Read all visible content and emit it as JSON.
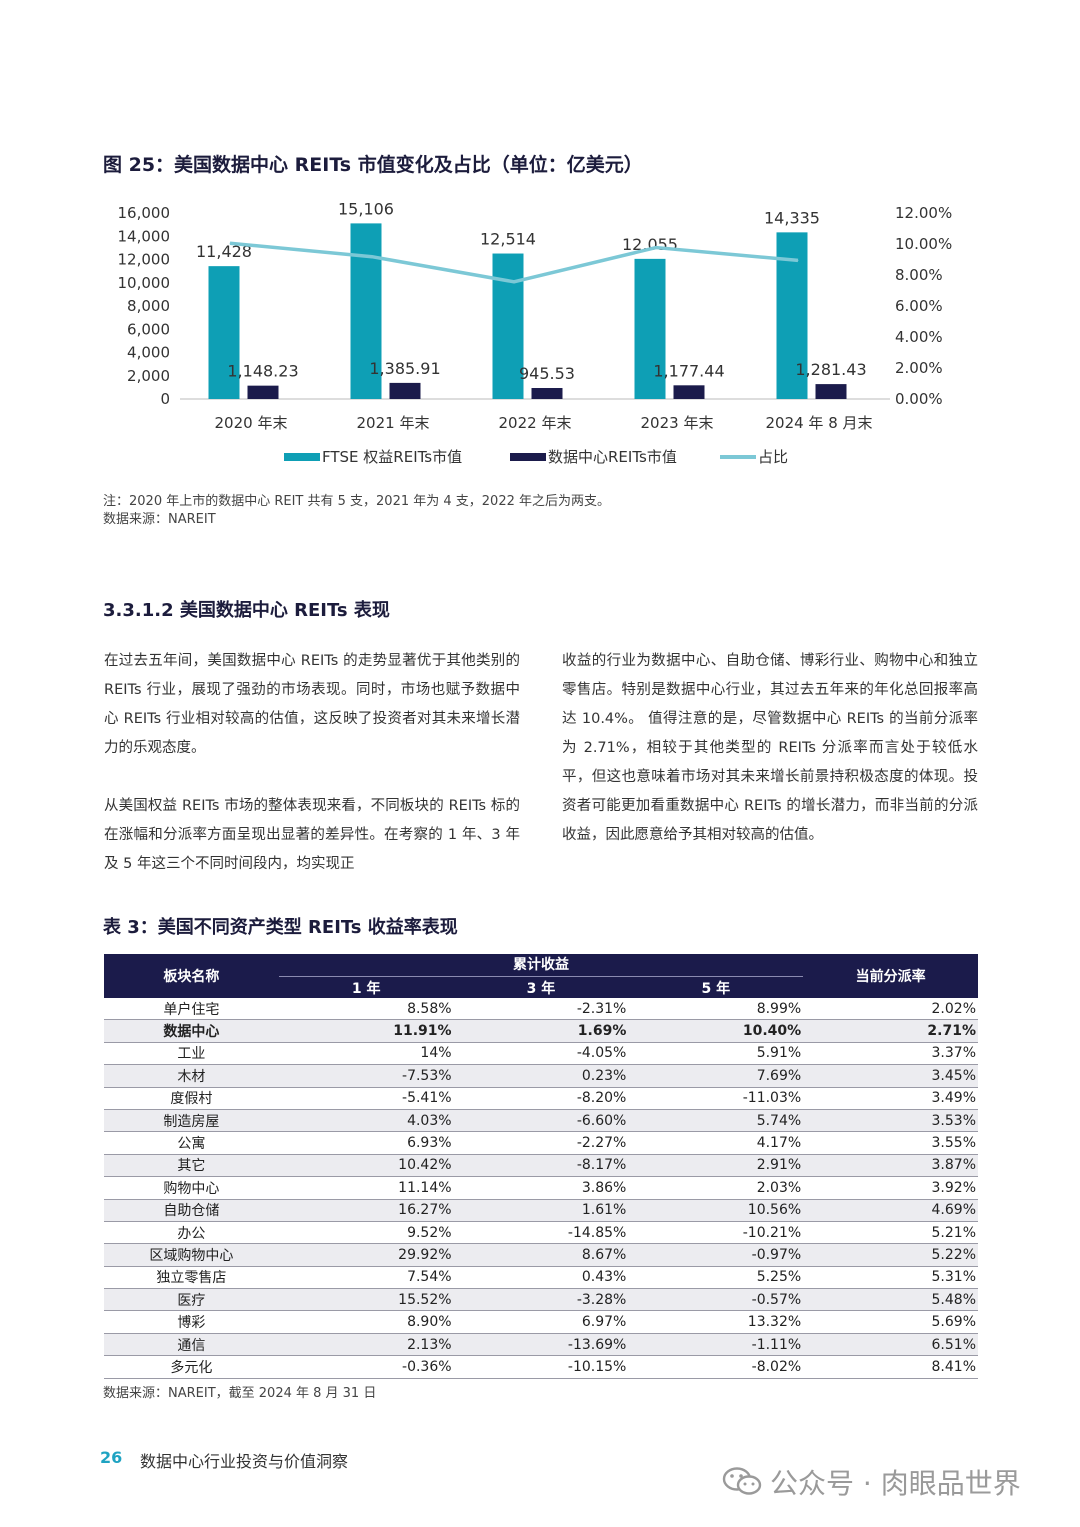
{
  "figure": {
    "title": "图 25：美国数据中心 REITs 市值变化及占比（单位：亿美元）",
    "note": "注：2020 年上市的数据中心 REIT 共有 5 支，2021 年为 4 支，2022 年之后为两支。",
    "source": "数据来源：NAREIT"
  },
  "chart_data": {
    "type": "bar",
    "categories": [
      "2020 年末",
      "2021 年末",
      "2022 年末",
      "2023 年末",
      "2024 年 8 月末"
    ],
    "series": [
      {
        "name": "FTSE 权益REITs市值",
        "type": "bar",
        "values": [
          11428,
          15106,
          12514,
          12055,
          14335
        ],
        "labels": [
          "11,428",
          "15,106",
          "12,514",
          "12,055",
          "14,335"
        ],
        "color": "#0e9fb5"
      },
      {
        "name": "数据中心REITs市值",
        "type": "bar",
        "values": [
          1148.23,
          1385.91,
          945.53,
          1177.44,
          1281.43
        ],
        "labels": [
          "1,148.23",
          "1,385.91",
          "945.53",
          "1,177.44",
          "1,281.43"
        ],
        "color": "#1b1b4b"
      },
      {
        "name": "占比",
        "type": "line",
        "axis": "right",
        "values": [
          0.1005,
          0.0918,
          0.0756,
          0.0977,
          0.0894
        ],
        "color": "#7cc8d6"
      }
    ],
    "y_left": {
      "min": 0,
      "max": 16000,
      "ticks": [
        "16,000",
        "14,000",
        "12,000",
        "10,000",
        "8,000",
        "6,000",
        "4,000",
        "2,000",
        "0"
      ]
    },
    "y_right": {
      "min": 0,
      "max": 0.12,
      "ticks": [
        "12.00%",
        "10.00%",
        "8.00%",
        "6.00%",
        "4.00%",
        "2.00%",
        "0.00%"
      ]
    },
    "legend_position": "bottom",
    "grid": false
  },
  "section": {
    "title": "3.3.1.2 美国数据中心 REITs 表现",
    "left_paragraphs": [
      "在过去五年间，美国数据中心 REITs 的走势显著优于其他类别的 REITs 行业，展现了强劲的市场表现。同时，市场也赋予数据中心 REITs 行业相对较高的估值，这反映了投资者对其未来增长潜力的乐观态度。",
      "从美国权益 REITs 市场的整体表现来看，不同板块的 REITs 标的在涨幅和分派率方面呈现出显著的差异性。在考察的 1 年、3 年及 5 年这三个不同时间段内，均实现正"
    ],
    "right_paragraphs": [
      "收益的行业为数据中心、自助仓储、博彩行业、购物中心和独立零售店。特别是数据中心行业，其过去五年来的年化总回报率高达 10.4%。 值得注意的是，尽管数据中心 REITs 的当前分派率为 2.71%，相较于其他类型的 REITs 分派率而言处于较低水平，但这也意味着市场对其未来增长前景持积极态度的体现。投资者可能更加看重数据中心 REITs 的增长潜力，而非当前的分派收益，因此愿意给予其相对较高的估值。"
    ]
  },
  "table": {
    "title": "表 3：美国不同资产类型 REITs 收益率表现",
    "headers": {
      "name": "板块名称",
      "group": "累计收益",
      "y1": "1 年",
      "y3": "3 年",
      "y5": "5 年",
      "yield": "当前分派率"
    },
    "rows": [
      {
        "name": "单户住宅",
        "y1": "8.58%",
        "y3": "-2.31%",
        "y5": "8.99%",
        "yield": "2.02%"
      },
      {
        "name": "数据中心",
        "y1": "11.91%",
        "y3": "1.69%",
        "y5": "10.40%",
        "yield": "2.71%",
        "bold": true
      },
      {
        "name": "工业",
        "y1": "14%",
        "y3": "-4.05%",
        "y5": "5.91%",
        "yield": "3.37%"
      },
      {
        "name": "木材",
        "y1": "-7.53%",
        "y3": "0.23%",
        "y5": "7.69%",
        "yield": "3.45%"
      },
      {
        "name": "度假村",
        "y1": "-5.41%",
        "y3": "-8.20%",
        "y5": "-11.03%",
        "yield": "3.49%"
      },
      {
        "name": "制造房屋",
        "y1": "4.03%",
        "y3": "-6.60%",
        "y5": "5.74%",
        "yield": "3.53%"
      },
      {
        "name": "公寓",
        "y1": "6.93%",
        "y3": "-2.27%",
        "y5": "4.17%",
        "yield": "3.55%"
      },
      {
        "name": "其它",
        "y1": "10.42%",
        "y3": "-8.17%",
        "y5": "2.91%",
        "yield": "3.87%"
      },
      {
        "name": "购物中心",
        "y1": "11.14%",
        "y3": "3.86%",
        "y5": "2.03%",
        "yield": "3.92%"
      },
      {
        "name": "自助仓储",
        "y1": "16.27%",
        "y3": "1.61%",
        "y5": "10.56%",
        "yield": "4.69%"
      },
      {
        "name": "办公",
        "y1": "9.52%",
        "y3": "-14.85%",
        "y5": "-10.21%",
        "yield": "5.21%"
      },
      {
        "name": "区域购物中心",
        "y1": "29.92%",
        "y3": "8.67%",
        "y5": "-0.97%",
        "yield": "5.22%"
      },
      {
        "name": "独立零售店",
        "y1": "7.54%",
        "y3": "0.43%",
        "y5": "5.25%",
        "yield": "5.31%"
      },
      {
        "name": "医疗",
        "y1": "15.52%",
        "y3": "-3.28%",
        "y5": "-0.57%",
        "yield": "5.48%"
      },
      {
        "name": "博彩",
        "y1": "8.90%",
        "y3": "6.97%",
        "y5": "13.32%",
        "yield": "5.69%"
      },
      {
        "name": "通信",
        "y1": "2.13%",
        "y3": "-13.69%",
        "y5": "-1.11%",
        "yield": "6.51%"
      },
      {
        "name": "多元化",
        "y1": "-0.36%",
        "y3": "-10.15%",
        "y5": "-8.02%",
        "yield": "8.41%"
      }
    ],
    "source": "数据来源：NAREIT，截至 2024 年 8 月 31 日"
  },
  "footer": {
    "page_number": "26",
    "title": "数据中心行业投资与价值洞察"
  },
  "watermark": {
    "text": "公众号 · 肉眼品世界",
    "icon": "wechat-icon"
  }
}
